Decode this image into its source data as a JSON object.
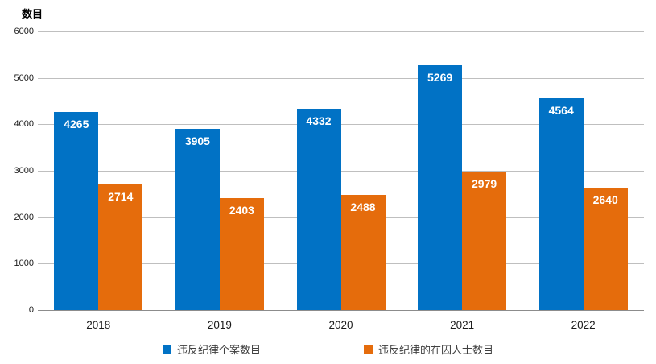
{
  "chart": {
    "y_axis_title": "数目"
  },
  "chart_data": {
    "type": "bar",
    "title": "",
    "xlabel": "",
    "ylabel": "数目",
    "categories": [
      "2018",
      "2019",
      "2020",
      "2021",
      "2022"
    ],
    "series": [
      {
        "name": "违反纪律个案数目",
        "color": "#0172C5",
        "values": [
          4265,
          3905,
          4332,
          5269,
          4564
        ]
      },
      {
        "name": "违反纪律的在囚人士数目",
        "color": "#E56C0C",
        "values": [
          2714,
          2403,
          2488,
          2979,
          2640
        ]
      }
    ],
    "ylim": [
      0,
      6000
    ],
    "y_tick_interval": 1000,
    "y_ticks": [
      0,
      1000,
      2000,
      3000,
      4000,
      5000,
      6000
    ],
    "grid": true,
    "legend_position": "bottom",
    "value_labels": "inside-top",
    "colors": {
      "gridline": "#bfbfbf",
      "baseline": "#8c8c8c",
      "value_label_text": "#ffffff",
      "tick_label_text": "#1a1a1a",
      "legend_text": "#404040",
      "background": "#ffffff"
    }
  }
}
